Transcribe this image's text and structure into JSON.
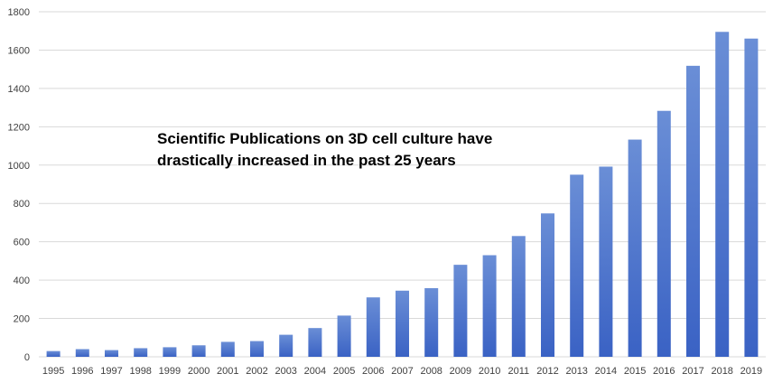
{
  "chart_data": {
    "type": "bar",
    "title": "",
    "xlabel": "",
    "ylabel": "",
    "ylim": [
      0,
      1800
    ],
    "yticks": [
      0,
      200,
      400,
      600,
      800,
      1000,
      1200,
      1400,
      1600,
      1800
    ],
    "grid": true,
    "legend": "none",
    "bar_color_top": "#6a8ed6",
    "bar_color_bottom": "#3a62c4",
    "grid_color": "#d9d9d9",
    "annotation_lines": [
      "Scientific Publications on 3D cell culture have",
      "drastically increased in the past 25 years"
    ],
    "categories": [
      "1995",
      "1996",
      "1997",
      "1998",
      "1999",
      "2000",
      "2001",
      "2002",
      "2003",
      "2004",
      "2005",
      "2006",
      "2007",
      "2008",
      "2009",
      "2010",
      "2011",
      "2012",
      "2013",
      "2014",
      "2015",
      "2016",
      "2017",
      "2018",
      "2019"
    ],
    "values": [
      30,
      40,
      35,
      45,
      50,
      60,
      78,
      82,
      115,
      150,
      215,
      310,
      345,
      358,
      480,
      530,
      630,
      748,
      950,
      992,
      1133,
      1283,
      1518,
      1695,
      1660
    ]
  }
}
